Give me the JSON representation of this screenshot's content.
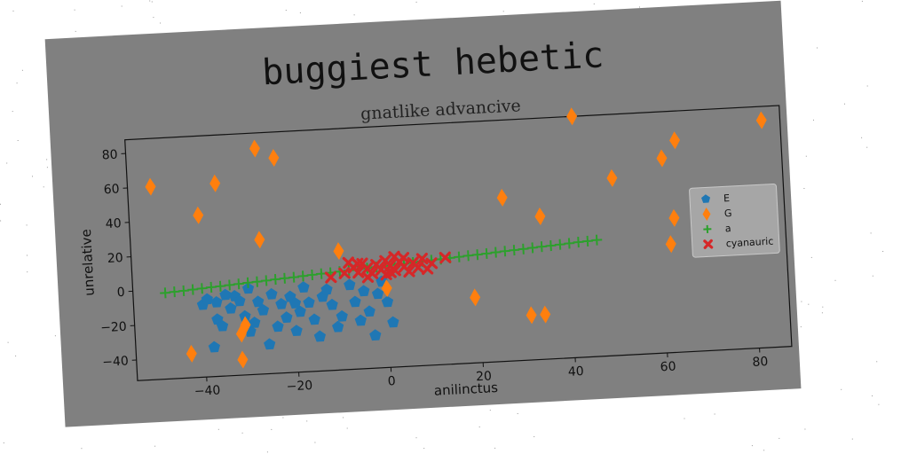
{
  "chart_data": {
    "type": "scatter",
    "title": "buggiest hebetic",
    "subtitle": "gnatlike advancive",
    "xlabel": "anilinctus",
    "ylabel": "unrelative",
    "xlim": [
      -55,
      87
    ],
    "ylim": [
      -52,
      88
    ],
    "xticks": [
      -40,
      -20,
      0,
      20,
      40,
      60,
      80
    ],
    "yticks": [
      -40,
      -20,
      0,
      20,
      40,
      60,
      80
    ],
    "xtick_labels": [
      "−40",
      "−20",
      "0",
      "20",
      "40",
      "60",
      "80"
    ],
    "ytick_labels": [
      "−40",
      "−20",
      "0",
      "20",
      "40",
      "60",
      "80"
    ],
    "grid": false,
    "legend_position": "right",
    "background": "#808080",
    "series": [
      {
        "name": "E",
        "marker": "pentagon",
        "color": "#1f77b4",
        "points": [
          [
            -40,
            -10
          ],
          [
            -39,
            -7
          ],
          [
            -37,
            -19
          ],
          [
            -36,
            -23
          ],
          [
            -35,
            -5
          ],
          [
            -34,
            -13
          ],
          [
            -33,
            -6
          ],
          [
            -32,
            -9
          ],
          [
            -31,
            -18
          ],
          [
            -30,
            -27
          ],
          [
            -29,
            -22
          ],
          [
            -28,
            -10
          ],
          [
            -27,
            -15
          ],
          [
            -26,
            -35
          ],
          [
            -25,
            -6
          ],
          [
            -24,
            -25
          ],
          [
            -23,
            -12
          ],
          [
            -22,
            -20
          ],
          [
            -21,
            -8
          ],
          [
            -20,
            -28
          ],
          [
            -19,
            -17
          ],
          [
            -18,
            -3
          ],
          [
            -17,
            -12
          ],
          [
            -16,
            -22
          ],
          [
            -15,
            -32
          ],
          [
            -14,
            -9
          ],
          [
            -12,
            -14
          ],
          [
            -11,
            -27
          ],
          [
            -10,
            -21
          ],
          [
            -8,
            -3
          ],
          [
            -7,
            -13
          ],
          [
            -6,
            -24
          ],
          [
            -5,
            -7
          ],
          [
            -4,
            -19
          ],
          [
            -3,
            -33
          ],
          [
            -2,
            -9
          ],
          [
            -1,
            -2
          ],
          [
            0,
            -14
          ],
          [
            1,
            -26
          ],
          [
            -13,
            -5
          ],
          [
            -37,
            -9
          ],
          [
            -38,
            -35
          ],
          [
            -30,
            -2
          ],
          [
            -20,
            -12
          ]
        ]
      },
      {
        "name": "G",
        "marker": "thin_diamond",
        "color": "#ff7f0e",
        "points": [
          [
            -50,
            60
          ],
          [
            -40,
            42
          ],
          [
            -36,
            60
          ],
          [
            -27,
            79
          ],
          [
            -23,
            73
          ],
          [
            -27,
            26
          ],
          [
            -10,
            17
          ],
          [
            42,
            88
          ],
          [
            26,
            43
          ],
          [
            34,
            31
          ],
          [
            50,
            51
          ],
          [
            61,
            61
          ],
          [
            64,
            71
          ],
          [
            83,
            80
          ],
          [
            63,
            26
          ],
          [
            62,
            11
          ],
          [
            -43,
            -38
          ],
          [
            -32,
            -43
          ],
          [
            -32,
            -28
          ],
          [
            -31,
            -23
          ],
          [
            0,
            -6
          ],
          [
            19,
            -14
          ],
          [
            31,
            -26
          ],
          [
            34,
            -26
          ]
        ]
      },
      {
        "name": "a",
        "marker": "plus",
        "color": "#2ca02c",
        "points": [
          [
            -48,
            -2
          ],
          [
            -46,
            -1.6
          ],
          [
            -44,
            -1.3
          ],
          [
            -42,
            -0.9
          ],
          [
            -40,
            -0.5
          ],
          [
            -38,
            -0.1
          ],
          [
            -36,
            0.2
          ],
          [
            -34,
            0.6
          ],
          [
            -32,
            1
          ],
          [
            -30,
            1.4
          ],
          [
            -28,
            1.7
          ],
          [
            -26,
            2.1
          ],
          [
            -24,
            2.5
          ],
          [
            -22,
            2.9
          ],
          [
            -20,
            3.2
          ],
          [
            -18,
            3.6
          ],
          [
            -16,
            4
          ],
          [
            -14,
            4.4
          ],
          [
            -12,
            4.7
          ],
          [
            -10,
            5.1
          ],
          [
            -8,
            5.5
          ],
          [
            -6,
            5.9
          ],
          [
            -4,
            6.2
          ],
          [
            -2,
            6.6
          ],
          [
            0,
            7
          ],
          [
            2,
            7.4
          ],
          [
            4,
            7.7
          ],
          [
            6,
            8.1
          ],
          [
            8,
            8.5
          ],
          [
            10,
            8.9
          ],
          [
            12,
            9.2
          ],
          [
            14,
            9.6
          ],
          [
            16,
            10
          ],
          [
            18,
            10.4
          ],
          [
            20,
            10.7
          ],
          [
            22,
            11.1
          ],
          [
            24,
            11.5
          ],
          [
            26,
            11.9
          ],
          [
            28,
            12.2
          ],
          [
            30,
            12.6
          ],
          [
            32,
            13
          ],
          [
            34,
            13.4
          ],
          [
            36,
            13.7
          ],
          [
            38,
            14.1
          ],
          [
            40,
            14.5
          ],
          [
            42,
            14.9
          ],
          [
            44,
            15.2
          ],
          [
            46,
            15.6
          ]
        ]
      },
      {
        "name": "cyanauric",
        "marker": "x",
        "color": "#d62728",
        "points": [
          [
            -12,
            2
          ],
          [
            -8,
            10
          ],
          [
            -7,
            7
          ],
          [
            -6,
            4
          ],
          [
            -5,
            9
          ],
          [
            -4,
            6
          ],
          [
            -3,
            3
          ],
          [
            -2,
            8
          ],
          [
            -1,
            5
          ],
          [
            0,
            10
          ],
          [
            0,
            2
          ],
          [
            1,
            7
          ],
          [
            2,
            4
          ],
          [
            3,
            9
          ],
          [
            4,
            6
          ],
          [
            5,
            3
          ],
          [
            6,
            8
          ],
          [
            7,
            5
          ],
          [
            8,
            10
          ],
          [
            9,
            4
          ],
          [
            10,
            7
          ],
          [
            -9,
            4
          ],
          [
            -4,
            1
          ],
          [
            2,
            12
          ],
          [
            4,
            11
          ],
          [
            13,
            10
          ],
          [
            -6,
            9
          ],
          [
            1,
            3
          ]
        ]
      }
    ]
  }
}
